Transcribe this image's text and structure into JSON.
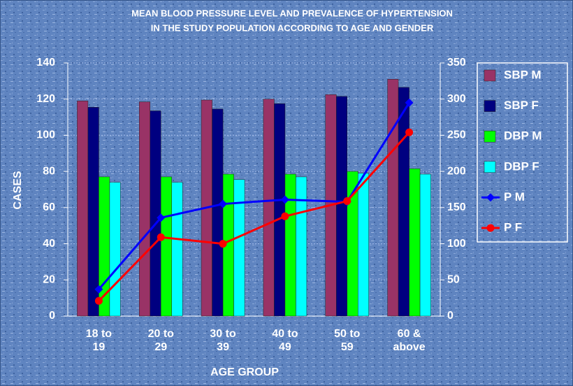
{
  "chart_data": {
    "type": "bar_line",
    "title": [
      "MEAN BLOOD PRESSURE LEVEL AND PREVALENCE OF HYPERTENSION",
      "IN THE STUDY POPULATION ACCORDING TO AGE AND GENDER"
    ],
    "x_label": "AGE GROUP",
    "y_label": "CASES",
    "categories": [
      "18 to 19",
      "20 to 29",
      "30 to 39",
      "40 to 49",
      "50 to 59",
      "60 & above"
    ],
    "series": [
      {
        "name": "SBP M",
        "type": "bar",
        "color": "#993366",
        "values": [
          119,
          118.5,
          119.5,
          120,
          122.5,
          131
        ]
      },
      {
        "name": "SBP F",
        "type": "bar",
        "color": "#000080",
        "values": [
          115.5,
          113.5,
          114.5,
          117.5,
          121.5,
          126.5
        ]
      },
      {
        "name": "DBP M",
        "type": "bar",
        "color": "#00ff00",
        "values": [
          77,
          77,
          78.5,
          78.5,
          80,
          81.5
        ]
      },
      {
        "name": "DBP F",
        "type": "bar",
        "color": "#00ffff",
        "values": [
          74,
          74,
          75.5,
          77,
          79,
          78.5
        ]
      },
      {
        "name": "P M",
        "type": "line",
        "marker": "diamond",
        "axis": "y2",
        "color": "#0000ff",
        "values": [
          37,
          136,
          155,
          161,
          158,
          295
        ]
      },
      {
        "name": "P F",
        "type": "line",
        "marker": "circle",
        "axis": "y2",
        "color": "#ff0000",
        "values": [
          21,
          109,
          100,
          138,
          159,
          254
        ]
      }
    ],
    "ylim": [
      0,
      140
    ],
    "yticks": [
      0,
      20,
      40,
      60,
      80,
      100,
      120,
      140
    ],
    "y2lim": [
      0,
      350
    ],
    "y2ticks": [
      0,
      50,
      100,
      150,
      200,
      250,
      300,
      350
    ],
    "grid": true,
    "legend": "right"
  }
}
